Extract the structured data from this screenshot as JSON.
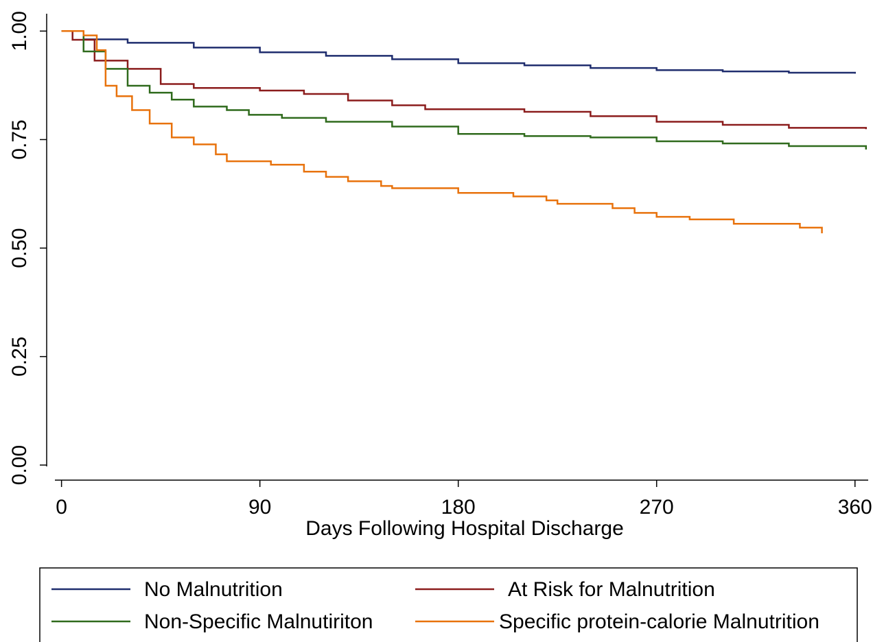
{
  "chart_data": {
    "type": "step",
    "xlabel": "Days Following Hospital Discharge",
    "xlim": [
      -3,
      366
    ],
    "xticks": [
      0,
      90,
      180,
      270,
      360
    ],
    "ylim": [
      -0.03,
      1.04
    ],
    "yticks": [
      {
        "value": 0,
        "label": "0.00"
      },
      {
        "value": 0.25,
        "label": "0.25"
      },
      {
        "value": 0.5,
        "label": "0.50"
      },
      {
        "value": 0.75,
        "label": "0.75"
      },
      {
        "value": 1,
        "label": "1.00"
      }
    ],
    "series": [
      {
        "name": "No Malnutrition",
        "color": "#1f2d6e",
        "x": [
          0,
          10,
          30,
          60,
          90,
          120,
          150,
          180,
          210,
          240,
          270,
          300,
          330,
          360
        ],
        "values": [
          1.0,
          0.981,
          0.973,
          0.962,
          0.951,
          0.943,
          0.935,
          0.926,
          0.921,
          0.915,
          0.91,
          0.907,
          0.904,
          0.902
        ]
      },
      {
        "name": "At Risk for Malnutrition",
        "color": "#8b1c1c",
        "x": [
          0,
          5,
          15,
          30,
          45,
          60,
          90,
          110,
          130,
          150,
          165,
          210,
          240,
          270,
          300,
          330,
          365
        ],
        "values": [
          1.0,
          0.98,
          0.932,
          0.913,
          0.878,
          0.869,
          0.863,
          0.855,
          0.84,
          0.829,
          0.82,
          0.814,
          0.804,
          0.791,
          0.784,
          0.777,
          0.774
        ]
      },
      {
        "name": "Non-Specific Malnutiriton",
        "color": "#2f6a1c",
        "x": [
          0,
          10,
          20,
          30,
          40,
          50,
          60,
          75,
          85,
          100,
          120,
          150,
          180,
          210,
          240,
          270,
          300,
          330,
          365
        ],
        "values": [
          1.0,
          0.953,
          0.913,
          0.874,
          0.858,
          0.842,
          0.826,
          0.818,
          0.807,
          0.8,
          0.791,
          0.78,
          0.763,
          0.758,
          0.755,
          0.746,
          0.741,
          0.735,
          0.727
        ]
      },
      {
        "name": "Specific protein-calorie Malnutrition",
        "color": "#e8720c",
        "x": [
          0,
          10,
          16,
          20,
          25,
          32,
          40,
          50,
          60,
          70,
          75,
          95,
          110,
          120,
          130,
          145,
          150,
          180,
          205,
          220,
          225,
          250,
          260,
          270,
          285,
          305,
          335,
          345
        ],
        "values": [
          1.0,
          0.99,
          0.956,
          0.874,
          0.85,
          0.818,
          0.787,
          0.755,
          0.739,
          0.716,
          0.7,
          0.692,
          0.676,
          0.664,
          0.654,
          0.643,
          0.638,
          0.627,
          0.619,
          0.61,
          0.602,
          0.592,
          0.581,
          0.572,
          0.566,
          0.556,
          0.547,
          0.534
        ]
      }
    ]
  }
}
